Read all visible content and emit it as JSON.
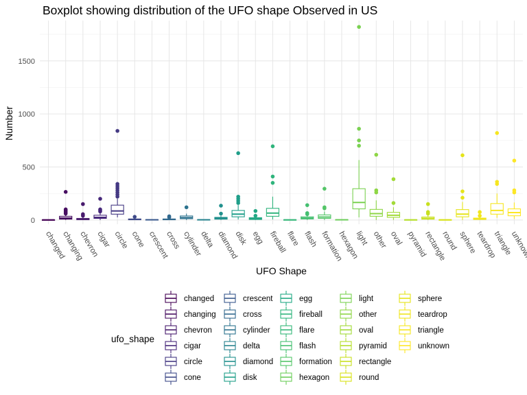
{
  "chart_data": {
    "type": "boxplot",
    "title": "Boxplot showing distribution of the UFO shape Observed in US",
    "xlabel": "UFO Shape",
    "ylabel": "Number",
    "ylim": [
      -40,
      1880
    ],
    "yticks": [
      0,
      500,
      1000,
      1500
    ],
    "grid": true,
    "legend": {
      "title": "ufo_shape",
      "placement": "bottom"
    },
    "categories": [
      "changed",
      "changing",
      "chevron",
      "cigar",
      "circle",
      "cone",
      "crescent",
      "cross",
      "cylinder",
      "delta",
      "diamond",
      "disk",
      "egg",
      "fireball",
      "flare",
      "flash",
      "formation",
      "hexagon",
      "light",
      "other",
      "oval",
      "pyramid",
      "rectangle",
      "round",
      "sphere",
      "teardrop",
      "triangle",
      "unknown"
    ],
    "colors": [
      "#440154",
      "#470e61",
      "#481b6d",
      "#46277a",
      "#443983",
      "#3e4a89",
      "#38588c",
      "#31688e",
      "#2c728e",
      "#26828e",
      "#21908d",
      "#1f9e89",
      "#22a884",
      "#2fb47c",
      "#35b779",
      "#44bf70",
      "#54c568",
      "#6ccd5a",
      "#7ad151",
      "#8ed645",
      "#a2da37",
      "#b5de2b",
      "#c8e020",
      "#d8e219",
      "#e5e419",
      "#f0e51c",
      "#f6e620",
      "#fde725"
    ],
    "boxes": [
      {
        "shape": "changed",
        "min": 0,
        "q1": 0,
        "median": 1,
        "q3": 2,
        "max": 3,
        "outliers": []
      },
      {
        "shape": "changing",
        "min": 0,
        "q1": 8,
        "median": 18,
        "q3": 35,
        "max": 55,
        "outliers": [
          60,
          70,
          80,
          90,
          100,
          265
        ]
      },
      {
        "shape": "chevron",
        "min": 0,
        "q1": 3,
        "median": 8,
        "q3": 15,
        "max": 25,
        "outliers": [
          40,
          55,
          150
        ]
      },
      {
        "shape": "cigar",
        "min": 0,
        "q1": 15,
        "median": 25,
        "q3": 45,
        "max": 70,
        "outliers": [
          80,
          90,
          100,
          200
        ]
      },
      {
        "shape": "circle",
        "min": 25,
        "q1": 55,
        "median": 85,
        "q3": 140,
        "max": 200,
        "outliers": [
          220,
          240,
          260,
          280,
          300,
          320,
          340,
          840
        ]
      },
      {
        "shape": "cone",
        "min": 0,
        "q1": 2,
        "median": 5,
        "q3": 10,
        "max": 15,
        "outliers": [
          30
        ]
      },
      {
        "shape": "crescent",
        "min": 0,
        "q1": 0,
        "median": 2,
        "q3": 4,
        "max": 6,
        "outliers": []
      },
      {
        "shape": "cross",
        "min": 0,
        "q1": 2,
        "median": 5,
        "q3": 10,
        "max": 15,
        "outliers": [
          25,
          35
        ]
      },
      {
        "shape": "cylinder",
        "min": 0,
        "q1": 12,
        "median": 22,
        "q3": 38,
        "max": 60,
        "outliers": [
          120
        ]
      },
      {
        "shape": "delta",
        "min": 0,
        "q1": 0,
        "median": 2,
        "q3": 4,
        "max": 6,
        "outliers": []
      },
      {
        "shape": "diamond",
        "min": 0,
        "q1": 8,
        "median": 15,
        "q3": 25,
        "max": 40,
        "outliers": [
          60,
          135
        ]
      },
      {
        "shape": "disk",
        "min": 5,
        "q1": 30,
        "median": 55,
        "q3": 90,
        "max": 140,
        "outliers": [
          160,
          180,
          200,
          220,
          630
        ]
      },
      {
        "shape": "egg",
        "min": 0,
        "q1": 5,
        "median": 12,
        "q3": 22,
        "max": 35,
        "outliers": [
          40,
          85
        ]
      },
      {
        "shape": "fireball",
        "min": 5,
        "q1": 35,
        "median": 65,
        "q3": 110,
        "max": 220,
        "outliers": [
          350,
          410,
          695
        ]
      },
      {
        "shape": "flare",
        "min": 0,
        "q1": 0,
        "median": 1,
        "q3": 3,
        "max": 5,
        "outliers": []
      },
      {
        "shape": "flash",
        "min": 0,
        "q1": 10,
        "median": 18,
        "q3": 30,
        "max": 45,
        "outliers": [
          55,
          65,
          140
        ]
      },
      {
        "shape": "formation",
        "min": 0,
        "q1": 15,
        "median": 28,
        "q3": 48,
        "max": 80,
        "outliers": [
          110,
          120,
          295
        ]
      },
      {
        "shape": "hexagon",
        "min": 0,
        "q1": 0,
        "median": 2,
        "q3": 4,
        "max": 6,
        "outliers": []
      },
      {
        "shape": "light",
        "min": 25,
        "q1": 105,
        "median": 165,
        "q3": 295,
        "max": 565,
        "outliers": [
          700,
          750,
          860,
          1820
        ]
      },
      {
        "shape": "other",
        "min": 0,
        "q1": 35,
        "median": 60,
        "q3": 100,
        "max": 185,
        "outliers": [
          260,
          280,
          615
        ]
      },
      {
        "shape": "oval",
        "min": 0,
        "q1": 25,
        "median": 45,
        "q3": 72,
        "max": 120,
        "outliers": [
          160,
          385
        ]
      },
      {
        "shape": "pyramid",
        "min": 0,
        "q1": 0,
        "median": 1,
        "q3": 3,
        "max": 5,
        "outliers": []
      },
      {
        "shape": "rectangle",
        "min": 0,
        "q1": 8,
        "median": 15,
        "q3": 28,
        "max": 45,
        "outliers": [
          60,
          75,
          150
        ]
      },
      {
        "shape": "round",
        "min": 0,
        "q1": 0,
        "median": 1,
        "q3": 3,
        "max": 5,
        "outliers": []
      },
      {
        "shape": "sphere",
        "min": 0,
        "q1": 30,
        "median": 55,
        "q3": 98,
        "max": 170,
        "outliers": [
          210,
          270,
          610
        ]
      },
      {
        "shape": "teardrop",
        "min": 0,
        "q1": 5,
        "median": 10,
        "q3": 18,
        "max": 28,
        "outliers": [
          40,
          75
        ]
      },
      {
        "shape": "triangle",
        "min": 20,
        "q1": 55,
        "median": 90,
        "q3": 155,
        "max": 250,
        "outliers": [
          340,
          360,
          820
        ]
      },
      {
        "shape": "unknown",
        "min": 10,
        "q1": 40,
        "median": 70,
        "q3": 105,
        "max": 165,
        "outliers": [
          260,
          280,
          560
        ]
      }
    ]
  }
}
